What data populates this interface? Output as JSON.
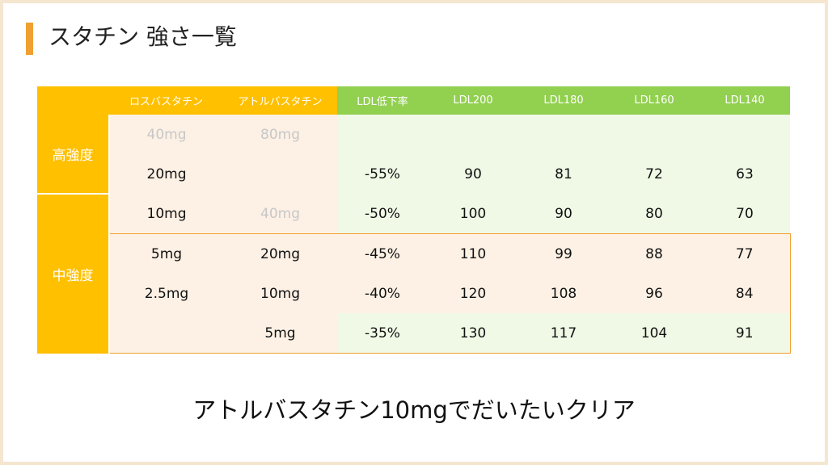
{
  "title": "スタチン 強さ一覧",
  "table": {
    "headers": {
      "group": "",
      "rosuvastatin": "ロスバスタチン",
      "atorvastatin": "アトルバスタチン",
      "ldl_reduction": "LDL低下率",
      "ldl200": "LDL200",
      "ldl180": "LDL180",
      "ldl160": "LDL160",
      "ldl140": "LDL140"
    },
    "groups": {
      "high": "高強度",
      "moderate": "中強度"
    },
    "rows": [
      {
        "rosu": "40mg",
        "ator": "80mg",
        "reduction": "",
        "ldl200": "",
        "ldl180": "",
        "ldl160": "",
        "ldl140": ""
      },
      {
        "rosu": "20mg",
        "ator": "",
        "reduction": "-55%",
        "ldl200": "90",
        "ldl180": "81",
        "ldl160": "72",
        "ldl140": "63"
      },
      {
        "rosu": "10mg",
        "ator": "40mg",
        "reduction": "-50%",
        "ldl200": "100",
        "ldl180": "90",
        "ldl160": "80",
        "ldl140": "70"
      },
      {
        "rosu": "5mg",
        "ator": "20mg",
        "reduction": "-45%",
        "ldl200": "110",
        "ldl180": "99",
        "ldl160": "88",
        "ldl140": "77"
      },
      {
        "rosu": "2.5mg",
        "ator": "10mg",
        "reduction": "-40%",
        "ldl200": "120",
        "ldl180": "108",
        "ldl160": "96",
        "ldl140": "84"
      },
      {
        "rosu": "",
        "ator": "5mg",
        "reduction": "-35%",
        "ldl200": "130",
        "ldl180": "117",
        "ldl160": "104",
        "ldl140": "91"
      }
    ]
  },
  "caption": "アトルバスタチン10mgでだいたいクリア",
  "colors": {
    "accent_orange": "#ffc000",
    "accent_green": "#92d050",
    "title_bar": "#f0a030",
    "peach_fill": "#fdf1e5",
    "green_fill": "#f0f9e6",
    "dim_text": "#c7c7c7"
  }
}
